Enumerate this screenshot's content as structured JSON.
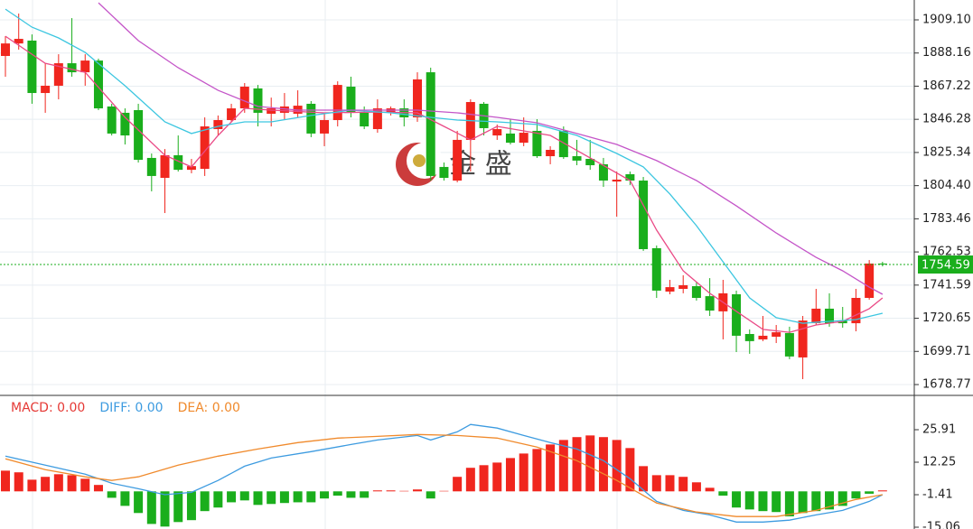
{
  "chart_data": [
    {
      "type": "candlestick",
      "watermark": "金 盛",
      "up_color": "#f0261e",
      "down_color": "#1aae1c",
      "ylim": [
        1672.5,
        1921.64
      ],
      "yticks": [
        {
          "value": 1909.1,
          "label": "1909.10"
        },
        1888.16,
        1867.22,
        1846.28,
        1825.34,
        {
          "value": 1804.4,
          "label": "1804.40"
        },
        1783.46,
        1762.53,
        1741.59,
        1720.65,
        1699.71,
        1678.77
      ],
      "last_price": 1754.59,
      "last_price_color": "#1aae1c",
      "open": [
        1886.3,
        1894.2,
        1896.0,
        1862.9,
        1867.5,
        1881.7,
        1876.0,
        1883.4,
        1854.4,
        1850.4,
        1852.1,
        1821.9,
        1809.3,
        1823.6,
        1814.4,
        1815.0,
        1840.1,
        1845.8,
        1853.2,
        1865.8,
        1849.8,
        1850.4,
        1849.8,
        1856.1,
        1837.3,
        1845.8,
        1866.9,
        1850.4,
        1840.1,
        1850.9,
        1853.2,
        1847.5,
        1876.0,
        1816.2,
        1807.6,
        1833.3,
        1856.1,
        1836.1,
        1837.3,
        1831.5,
        1839.0,
        1823.0,
        1839.0,
        1823.0,
        1821.3,
        1817.9,
        1807.0,
        1811.6,
        1807.6,
        1764.9,
        1737.5,
        1739.2,
        1740.9,
        1734.6,
        1725.0,
        1735.8,
        1710.7,
        1707.3,
        1709.0,
        1711.3,
        1695.9,
        1717.5,
        1726.7,
        1719.2,
        1717.5,
        1733.5,
        1755.2
      ],
      "high": [
        1898.8,
        1913.1,
        1899.9,
        1881.7,
        1887.4,
        1910.2,
        1887.4,
        1884.6,
        1856.1,
        1853.2,
        1856.1,
        1824.7,
        1827.5,
        1836.1,
        1821.3,
        1847.5,
        1848.7,
        1856.1,
        1869.2,
        1868.0,
        1860.0,
        1862.9,
        1864.6,
        1857.8,
        1849.8,
        1870.3,
        1873.2,
        1854.4,
        1858.9,
        1854.4,
        1858.9,
        1876.0,
        1878.9,
        1819.0,
        1839.0,
        1858.9,
        1857.2,
        1843.0,
        1846.4,
        1847.5,
        1846.4,
        1829.3,
        1841.8,
        1833.3,
        1833.3,
        1821.9,
        1813.3,
        1813.3,
        1809.9,
        1766.6,
        1744.9,
        1747.8,
        1743.8,
        1746.0,
        1744.9,
        1738.1,
        1713.6,
        1722.1,
        1716.4,
        1715.3,
        1722.1,
        1739.2,
        1736.4,
        1727.8,
        1739.2,
        1757.4,
        1756.3
      ],
      "low": [
        1873.2,
        1890.3,
        1856.1,
        1850.4,
        1858.9,
        1873.2,
        1867.5,
        1852.1,
        1836.1,
        1830.4,
        1819.0,
        1800.8,
        1787.1,
        1813.3,
        1812.2,
        1810.5,
        1836.1,
        1844.7,
        1850.4,
        1841.8,
        1841.8,
        1846.4,
        1847.5,
        1835.0,
        1829.3,
        1841.8,
        1847.5,
        1840.1,
        1837.8,
        1848.7,
        1841.8,
        1844.7,
        1807.6,
        1807.6,
        1806.5,
        1813.3,
        1836.1,
        1833.3,
        1830.4,
        1829.3,
        1821.9,
        1817.9,
        1821.3,
        1817.3,
        1814.4,
        1803.6,
        1784.8,
        1804.8,
        1763.2,
        1733.5,
        1735.8,
        1736.4,
        1731.8,
        1722.1,
        1707.3,
        1699.3,
        1698.2,
        1706.2,
        1705.0,
        1694.8,
        1682.2,
        1716.4,
        1715.3,
        1714.7,
        1712.4,
        1732.4,
        1753.4
      ],
      "close": [
        1894.2,
        1897.1,
        1862.9,
        1867.5,
        1881.7,
        1876.0,
        1883.4,
        1853.2,
        1837.3,
        1836.1,
        1820.7,
        1810.5,
        1823.6,
        1814.4,
        1816.7,
        1841.8,
        1845.8,
        1853.2,
        1866.9,
        1850.4,
        1853.2,
        1854.4,
        1854.9,
        1837.3,
        1845.8,
        1868.0,
        1850.4,
        1841.8,
        1853.2,
        1853.2,
        1847.5,
        1871.5,
        1810.5,
        1809.3,
        1833.3,
        1857.2,
        1840.7,
        1840.1,
        1831.5,
        1837.8,
        1823.0,
        1827.0,
        1822.4,
        1820.2,
        1817.3,
        1807.6,
        1808.2,
        1807.6,
        1764.3,
        1738.1,
        1740.3,
        1741.5,
        1733.5,
        1725.5,
        1736.4,
        1709.6,
        1706.2,
        1709.6,
        1711.8,
        1696.5,
        1719.2,
        1726.7,
        1717.5,
        1717.5,
        1733.5,
        1755.2,
        1754.59
      ],
      "lines": [
        {
          "color": "#ea4a86",
          "x": [
            0,
            3,
            6,
            9,
            12,
            14,
            16,
            18,
            20,
            24,
            28,
            31,
            33,
            35,
            37,
            41,
            44,
            47,
            49,
            51,
            53,
            55,
            57,
            59,
            61,
            63,
            65,
            66
          ],
          "values": [
            1898.8,
            1881.7,
            1876.0,
            1847.5,
            1823.6,
            1816.2,
            1836.1,
            1853.2,
            1852.1,
            1850.4,
            1850.9,
            1850.4,
            1841.8,
            1833.3,
            1841.8,
            1836.1,
            1821.9,
            1807.6,
            1776.3,
            1750.6,
            1736.4,
            1725.0,
            1713.6,
            1711.8,
            1716.4,
            1718.7,
            1726.7,
            1733.5
          ]
        },
        {
          "color": "#3cc6e0",
          "x": [
            0,
            2,
            4,
            6,
            9,
            12,
            14,
            16,
            18,
            20,
            23,
            26,
            29,
            32,
            34,
            37,
            40,
            43,
            46,
            48,
            50,
            52,
            54,
            56,
            58,
            60,
            62,
            64,
            66
          ],
          "values": [
            1915.9,
            1904.5,
            1897.7,
            1888.5,
            1867.5,
            1844.7,
            1837.3,
            1841.8,
            1844.7,
            1844.7,
            1848.7,
            1852.1,
            1850.4,
            1847.5,
            1845.8,
            1844.7,
            1843.0,
            1836.1,
            1824.7,
            1816.2,
            1799.1,
            1779.1,
            1756.3,
            1733.5,
            1721.0,
            1717.5,
            1718.7,
            1719.8,
            1723.8
          ]
        },
        {
          "color": "#c455c8",
          "x": [
            7,
            10,
            13,
            16,
            19,
            22,
            25,
            28,
            31,
            34,
            37,
            40,
            43,
            46,
            49,
            52,
            55,
            58,
            61,
            63,
            65,
            66
          ],
          "values": [
            1919.9,
            1896.0,
            1878.9,
            1864.6,
            1854.4,
            1852.1,
            1852.1,
            1852.1,
            1852.1,
            1850.4,
            1847.5,
            1844.1,
            1837.3,
            1830.4,
            1820.2,
            1807.6,
            1791.6,
            1774.5,
            1759.1,
            1750.6,
            1740.3,
            1735.8
          ]
        }
      ]
    },
    {
      "type": "macd",
      "legend": [
        {
          "text": "MACD: 0.00",
          "color": "#e53935"
        },
        {
          "text": "DIFF: 0.00",
          "color": "#3d9be0"
        },
        {
          "text": "DEA: 0.00",
          "color": "#f08a2c"
        }
      ],
      "up_color": "#f0261e",
      "down_color": "#1aae1c",
      "ylim": [
        -15.82,
        39.57
      ],
      "yticks": [
        25.91,
        12.25,
        -1.41,
        -15.06
      ],
      "values": [
        8.7,
        8.0,
        4.9,
        6.1,
        7.2,
        6.8,
        5.3,
        2.7,
        -2.7,
        -6.1,
        -9.1,
        -13.7,
        -14.8,
        -12.9,
        -12.1,
        -8.3,
        -6.8,
        -4.6,
        -3.8,
        -5.7,
        -5.3,
        -4.9,
        -4.6,
        -4.6,
        -3.0,
        -1.8,
        -2.7,
        -2.7,
        0.4,
        0.4,
        0.2,
        0.8,
        -3.0,
        0.2,
        6.1,
        9.9,
        11.0,
        12.1,
        14.0,
        15.9,
        17.8,
        19.7,
        21.6,
        22.8,
        23.5,
        22.8,
        21.6,
        18.2,
        10.6,
        6.8,
        6.8,
        6.1,
        3.8,
        1.5,
        -1.8,
        -6.8,
        -7.6,
        -8.3,
        -8.7,
        -10.5,
        -9.1,
        -8.3,
        -7.6,
        -6.1,
        -3.0,
        -1.0,
        0.4
      ],
      "lines": [
        {
          "color": "#3d9be0",
          "x": [
            0,
            3,
            6,
            8,
            10,
            12,
            14,
            16,
            18,
            20,
            23,
            26,
            28,
            31,
            32,
            34,
            35,
            37,
            39,
            41,
            43,
            45,
            47,
            49,
            51,
            53,
            55,
            57,
            59,
            61,
            63,
            65,
            66
          ],
          "values": [
            14.8,
            11.0,
            7.2,
            3.4,
            1.1,
            -1.4,
            -0.4,
            4.6,
            10.6,
            14.0,
            16.7,
            19.7,
            21.6,
            23.5,
            21.6,
            25.0,
            28.1,
            26.6,
            23.5,
            20.5,
            17.8,
            12.9,
            5.3,
            -4.2,
            -8.0,
            -9.9,
            -12.9,
            -12.9,
            -12.1,
            -9.9,
            -8.0,
            -4.2,
            -1.4
          ]
        },
        {
          "color": "#f08a2c",
          "x": [
            0,
            3,
            6,
            8,
            10,
            13,
            16,
            19,
            22,
            25,
            28,
            31,
            34,
            37,
            40,
            43,
            46,
            49,
            52,
            55,
            58,
            61,
            64,
            66
          ],
          "values": [
            13.7,
            9.1,
            6.1,
            4.6,
            6.1,
            11.0,
            14.8,
            17.8,
            20.5,
            22.4,
            23.1,
            23.9,
            23.5,
            22.4,
            18.6,
            12.9,
            4.6,
            -4.9,
            -8.7,
            -10.6,
            -10.6,
            -8.0,
            -3.4,
            -1.4
          ]
        }
      ]
    }
  ]
}
